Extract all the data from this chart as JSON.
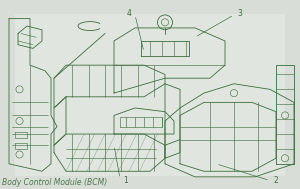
{
  "title": "Body Control Module (BCM)",
  "title_color": "#4a7a4a",
  "title_fontsize": 5.5,
  "background_color": "#d8ddd8",
  "line_color": "#3a6e3a",
  "callout_color": "#3a6e3a",
  "fig_width": 3.0,
  "fig_height": 1.89,
  "dpi": 100
}
